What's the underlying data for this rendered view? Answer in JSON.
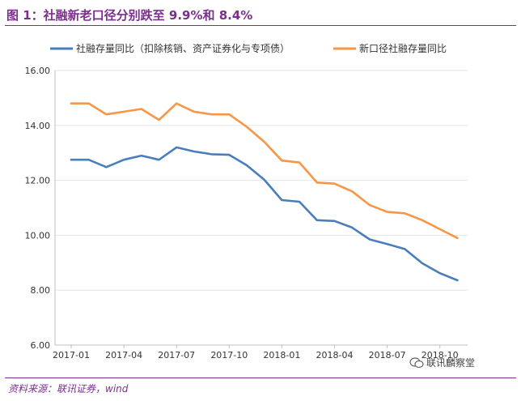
{
  "header": {
    "title": "图 1：社融新老口径分别跌至 9.9%和 8.4%"
  },
  "footer": {
    "source": "资料来源：联讯证券，wind",
    "watermark": "联讯麟察堂"
  },
  "colors": {
    "accent": "#7b2e8e",
    "series_old": "#4a7ebb",
    "series_new": "#f79646"
  },
  "chart_data": {
    "type": "line",
    "title": "",
    "xlabel": "",
    "ylabel": "",
    "ylim": [
      6.0,
      16.0
    ],
    "yticks": [
      "6.00",
      "8.00",
      "10.00",
      "12.00",
      "14.00",
      "16.00"
    ],
    "xticks": [
      "2017-01",
      "2017-04",
      "2017-07",
      "2017-10",
      "2018-01",
      "2018-04",
      "2018-07",
      "2018-10"
    ],
    "categories": [
      "2017-01",
      "2017-02",
      "2017-03",
      "2017-04",
      "2017-05",
      "2017-06",
      "2017-07",
      "2017-08",
      "2017-09",
      "2017-10",
      "2017-11",
      "2017-12",
      "2018-01",
      "2018-02",
      "2018-03",
      "2018-04",
      "2018-05",
      "2018-06",
      "2018-07",
      "2018-08",
      "2018-09",
      "2018-10",
      "2018-11"
    ],
    "legend_position": "top",
    "series": [
      {
        "name": "社融存量同比（扣除核销、资产证券化与专项债）",
        "color": "#4a7ebb",
        "values": [
          12.75,
          12.75,
          12.48,
          12.75,
          12.9,
          12.75,
          13.2,
          13.05,
          12.95,
          12.93,
          12.55,
          12.02,
          11.28,
          11.22,
          10.55,
          10.52,
          10.28,
          9.85,
          9.68,
          9.5,
          8.98,
          8.62,
          8.36
        ]
      },
      {
        "name": "新口径社融存量同比",
        "color": "#f79646",
        "values": [
          14.8,
          14.8,
          14.4,
          14.5,
          14.6,
          14.2,
          14.8,
          14.5,
          14.4,
          14.4,
          13.95,
          13.4,
          12.72,
          12.65,
          11.92,
          11.88,
          11.6,
          11.1,
          10.85,
          10.8,
          10.55,
          10.22,
          9.9
        ]
      }
    ]
  }
}
